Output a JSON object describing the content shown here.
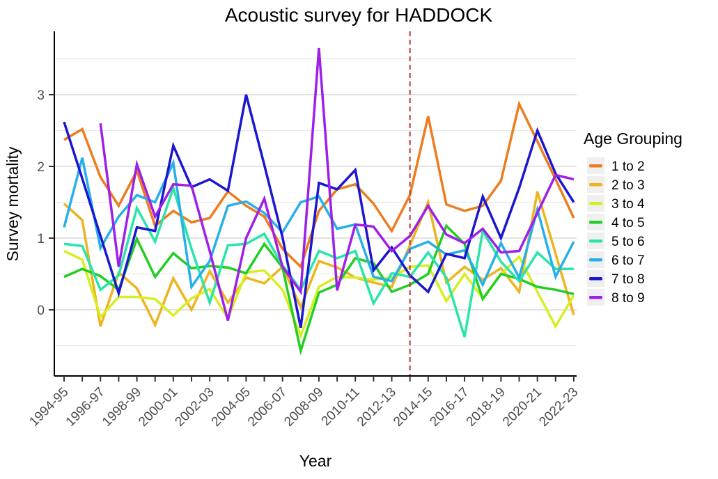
{
  "title": "Acoustic survey for HADDOCK",
  "x_axis": {
    "label": "Year"
  },
  "y_axis": {
    "label": "Survey mortality",
    "tick_labels": [
      "0",
      "1",
      "2",
      "3"
    ]
  },
  "legend": {
    "title": "Age Grouping",
    "items": [
      {
        "label": "1 to 2",
        "color": "#ed7d1f"
      },
      {
        "label": "2 to 3",
        "color": "#eeb420"
      },
      {
        "label": "3 to 4",
        "color": "#d7ee20"
      },
      {
        "label": "4 to 5",
        "color": "#22ce22"
      },
      {
        "label": "5 to 6",
        "color": "#29e5ab"
      },
      {
        "label": "6 to 7",
        "color": "#27b0e8"
      },
      {
        "label": "7 to 8",
        "color": "#1b16cf"
      },
      {
        "label": "8 to 9",
        "color": "#9e1fe8"
      }
    ]
  },
  "chart_data": {
    "type": "line",
    "title": "Acoustic survey for HADDOCK",
    "xlabel": "Year",
    "ylabel": "Survey mortality",
    "grid": "major+minor",
    "legend_position": "right",
    "ylim": [
      -0.9,
      3.9
    ],
    "yticks_major": [
      0,
      1,
      2,
      3
    ],
    "yticks_minor": [
      -0.5,
      0.5,
      1.5,
      2.5,
      3.5
    ],
    "x_tick_every": 2,
    "vline": {
      "at_category": "2013-14",
      "color": "#c43333",
      "style": "dashed"
    },
    "categories": [
      "1994-95",
      "1995-96",
      "1996-97",
      "1997-98",
      "1998-99",
      "1999-00",
      "2000-01",
      "2001-02",
      "2002-03",
      "2003-04",
      "2004-05",
      "2005-06",
      "2006-07",
      "2007-08",
      "2008-09",
      "2009-10",
      "2010-11",
      "2011-12",
      "2012-13",
      "2013-14",
      "2014-15",
      "2015-16",
      "2016-17",
      "2017-18",
      "2018-19",
      "2019-20",
      "2020-21",
      "2021-22",
      "2022-23"
    ],
    "series": [
      {
        "name": "1 to 2",
        "color": "#ed7d1f",
        "values": [
          2.37,
          2.52,
          1.85,
          1.45,
          1.94,
          1.17,
          1.38,
          1.22,
          1.28,
          1.65,
          1.45,
          1.3,
          0.85,
          0.6,
          1.38,
          1.68,
          1.75,
          1.48,
          1.1,
          1.6,
          2.7,
          1.47,
          1.38,
          1.45,
          1.8,
          2.87,
          2.35,
          1.82,
          1.28
        ]
      },
      {
        "name": "2 to 3",
        "color": "#eeb420",
        "values": [
          1.48,
          1.25,
          -0.23,
          0.52,
          0.3,
          -0.21,
          0.44,
          0.0,
          0.54,
          0.1,
          0.45,
          0.37,
          0.6,
          0.04,
          0.68,
          0.59,
          0.45,
          0.38,
          0.32,
          0.9,
          1.5,
          0.38,
          0.6,
          0.42,
          0.58,
          0.25,
          1.65,
          0.78,
          -0.07
        ]
      },
      {
        "name": "3 to 4",
        "color": "#d7ee20",
        "values": [
          0.82,
          0.7,
          -0.1,
          0.18,
          0.18,
          0.15,
          -0.08,
          0.16,
          0.29,
          -0.12,
          0.52,
          0.55,
          0.28,
          -0.36,
          0.32,
          0.46,
          0.45,
          0.42,
          0.45,
          0.6,
          0.62,
          0.12,
          0.5,
          0.16,
          0.5,
          0.74,
          0.25,
          -0.23,
          0.2
        ]
      },
      {
        "name": "4 to 5",
        "color": "#22ce22",
        "values": [
          0.46,
          0.57,
          0.47,
          0.28,
          0.99,
          0.46,
          0.79,
          0.58,
          0.61,
          0.59,
          0.51,
          0.92,
          0.59,
          -0.57,
          0.24,
          0.35,
          0.72,
          0.65,
          0.25,
          0.35,
          0.5,
          1.17,
          0.92,
          0.15,
          0.5,
          0.43,
          0.32,
          0.28,
          0.22
        ]
      },
      {
        "name": "5 to 6",
        "color": "#29e5ab",
        "values": [
          0.92,
          0.89,
          0.28,
          0.48,
          1.42,
          0.95,
          1.7,
          0.85,
          0.1,
          0.9,
          0.92,
          1.06,
          0.62,
          0.28,
          0.82,
          0.72,
          0.82,
          0.09,
          0.51,
          0.46,
          0.8,
          0.45,
          -0.38,
          1.1,
          0.67,
          0.4,
          0.8,
          0.57,
          0.57
        ]
      },
      {
        "name": "6 to 7",
        "color": "#27b0e8",
        "values": [
          1.15,
          2.12,
          0.86,
          1.3,
          1.6,
          1.5,
          2.05,
          0.32,
          0.68,
          1.45,
          1.51,
          1.35,
          1.08,
          1.5,
          1.58,
          1.13,
          1.19,
          0.46,
          0.4,
          0.85,
          0.95,
          0.77,
          0.83,
          0.35,
          0.93,
          0.45,
          1.4,
          0.46,
          0.95
        ]
      },
      {
        "name": "7 to 8",
        "color": "#1b16cf",
        "values": [
          2.62,
          1.83,
          1.03,
          0.23,
          1.15,
          1.1,
          2.29,
          1.71,
          1.82,
          1.66,
          3.0,
          2.02,
          1.01,
          -0.25,
          1.77,
          1.68,
          1.95,
          0.55,
          0.87,
          0.48,
          0.25,
          0.78,
          0.72,
          1.58,
          1.0,
          1.7,
          2.5,
          1.9,
          1.5
        ]
      },
      {
        "name": "8 to 9",
        "color": "#9e1fe8",
        "values": [
          null,
          null,
          2.6,
          0.6,
          2.03,
          1.3,
          1.75,
          1.73,
          0.82,
          -0.15,
          1.0,
          1.55,
          0.6,
          0.25,
          3.65,
          0.27,
          1.19,
          1.16,
          0.82,
          1.03,
          1.45,
          1.05,
          0.93,
          1.13,
          0.8,
          0.82,
          1.35,
          1.88,
          1.82
        ]
      }
    ]
  }
}
